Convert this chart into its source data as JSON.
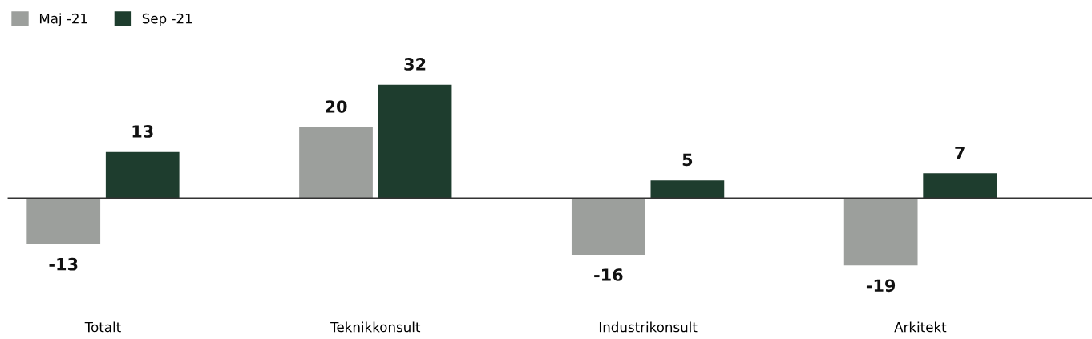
{
  "chart_data": {
    "type": "bar",
    "categories": [
      "Totalt",
      "Teknikkonsult",
      "Industrikonsult",
      "Arkitekt"
    ],
    "series": [
      {
        "name": "Maj -21",
        "color": "#9c9f9c",
        "values": [
          -13,
          20,
          -16,
          -19
        ]
      },
      {
        "name": "Sep -21",
        "color": "#1e3d2e",
        "values": [
          13,
          32,
          5,
          7
        ]
      }
    ],
    "data_labels": true,
    "legend": "top left",
    "grid": false
  }
}
